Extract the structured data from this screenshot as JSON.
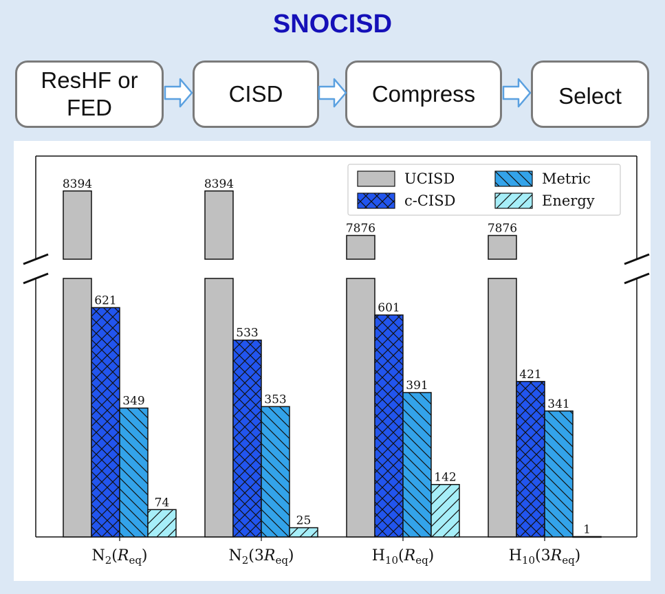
{
  "title": "SNOCISD",
  "pipeline": {
    "steps": [
      {
        "label_line1": "ResHF or",
        "label_line2": "FED"
      },
      {
        "label_line1": "CISD",
        "label_line2": ""
      },
      {
        "label_line1": "Compress",
        "label_line2": ""
      },
      {
        "label_line1": "Select",
        "label_line2": ""
      }
    ]
  },
  "colors": {
    "UCISD": "#c0c0c0",
    "c-CISD": "#2255ee",
    "Metric": "#33a3ea",
    "Energy": "#a6eef8",
    "title": "#1510b8",
    "arrow": "#5aa0e0"
  },
  "chart_data": {
    "type": "bar",
    "broken_axis": true,
    "categories": [
      {
        "base": "N",
        "sub": "2",
        "arg_pre": "",
        "arg_var": "R",
        "arg_sub": "eq"
      },
      {
        "base": "N",
        "sub": "2",
        "arg_pre": "3",
        "arg_var": "R",
        "arg_sub": "eq"
      },
      {
        "base": "H",
        "sub": "10",
        "arg_pre": "",
        "arg_var": "R",
        "arg_sub": "eq"
      },
      {
        "base": "H",
        "sub": "10",
        "arg_pre": "3",
        "arg_var": "R",
        "arg_sub": "eq"
      }
    ],
    "series": [
      {
        "name": "UCISD",
        "values": [
          8394,
          8394,
          7876,
          7876
        ],
        "hatch": "none"
      },
      {
        "name": "c-CISD",
        "values": [
          621,
          533,
          601,
          421
        ],
        "hatch": "cross"
      },
      {
        "name": "Metric",
        "values": [
          349,
          353,
          391,
          341
        ],
        "hatch": "backslash"
      },
      {
        "name": "Energy",
        "values": [
          74,
          25,
          142,
          1
        ],
        "hatch": "slash"
      }
    ],
    "lower_ylim": [
      0,
      700
    ],
    "upper_ylim": [
      7600,
      8800
    ],
    "legend": "top-right",
    "legend_columns": 2,
    "xlabel": "",
    "ylabel": ""
  }
}
